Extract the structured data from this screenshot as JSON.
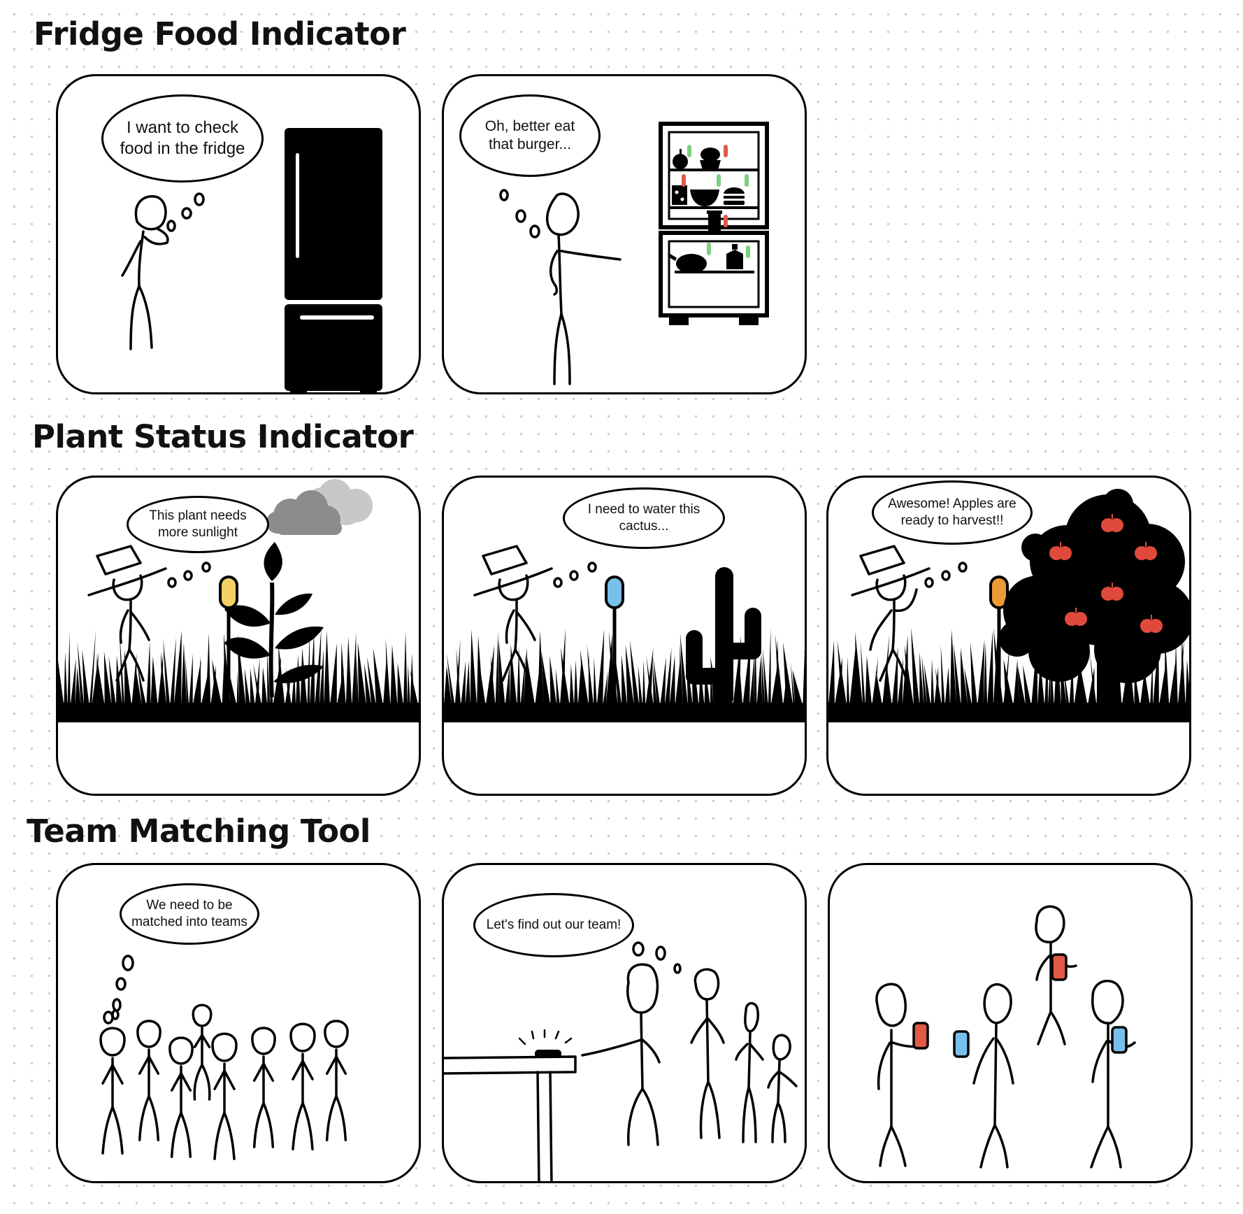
{
  "sections": [
    {
      "title": "Fridge Food Indicator",
      "panels": [
        {
          "bubble": "I want to check food in the fridge"
        },
        {
          "bubble": "Oh, better eat that burger..."
        }
      ]
    },
    {
      "title": "Plant Status Indicator",
      "panels": [
        {
          "bubble": "This plant needs more sunlight"
        },
        {
          "bubble": "I need to water this cactus..."
        },
        {
          "bubble": "Awesome! Apples are ready to harvest!!"
        }
      ]
    },
    {
      "title": "Team Matching Tool",
      "panels": [
        {
          "bubble": "We need to be matched into teams"
        },
        {
          "bubble": "Let's find out our team!"
        },
        {
          "bubble": ""
        }
      ]
    }
  ],
  "colors": {
    "indicator_green": "#7ccf7c",
    "indicator_red": "#e05a4a",
    "sensor_yellow": "#f2d264",
    "sensor_blue": "#7cc3ef",
    "sensor_orange": "#eb9a35",
    "apple_red": "#e04a3c",
    "phone_red": "#e05a45",
    "phone_blue": "#78c0ec",
    "cloud_dark": "#8c8c8c",
    "cloud_light": "#c8c8c8"
  },
  "icons": [
    "thought-dots",
    "stick-figure",
    "refrigerator-icon",
    "cloud-icon",
    "plant-icon",
    "cactus-icon",
    "apple-tree-icon",
    "apple-icon",
    "burger-icon",
    "phone-icon",
    "grass"
  ]
}
